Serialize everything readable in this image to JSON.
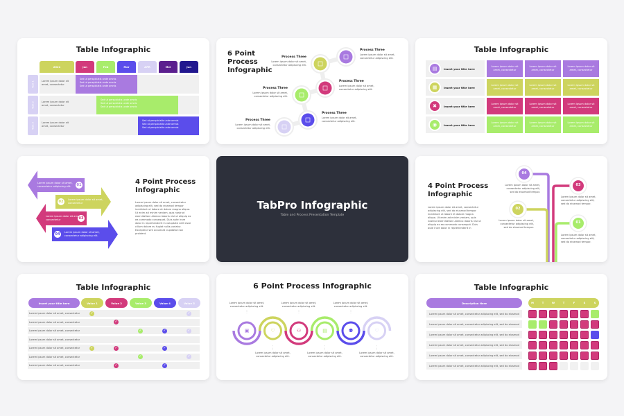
{
  "colors": {
    "purple": "#a97ae0",
    "lime": "#cdd45e",
    "magenta": "#d23a7c",
    "green": "#a8ec6b",
    "indigo": "#5b4deb",
    "lavender": "#d7d1f4",
    "darkpurple": "#5b1f8e",
    "navy": "#21178e",
    "dark": "#2d303b"
  },
  "slide1": {
    "title": "Table Infographic",
    "headers": [
      "2021",
      "Jan",
      "Feb",
      "Mar",
      "APR",
      "Mei",
      "Jun"
    ],
    "tasks": [
      {
        "label": "Task 1",
        "text": "Lorem ipsum dolor sit amet, consectetur",
        "bullets": [
          "Sed ut perspiciatis unde omnis",
          "Sed ut perspiciatis unde omnis",
          "Sed ut perspiciatis unde omnis"
        ]
      },
      {
        "label": "Task 2",
        "text": "Lorem ipsum dolor sit amet, consectetur",
        "bullets": [
          "Sed ut perspiciatis unde omnis",
          "Sed ut perspiciatis unde omnis",
          "Sed ut perspiciatis unde omnis"
        ]
      },
      {
        "label": "Task 3",
        "text": "Lorem ipsum dolor sit amet, consectetur",
        "bullets": [
          "Sed ut perspiciatis unde omnis",
          "Sed ut perspiciatis unde omnis",
          "Sed ut perspiciatis unde omnis"
        ]
      }
    ]
  },
  "slide2": {
    "title": "6 Point Process Infographic",
    "steps": [
      {
        "heading": "Process Three",
        "text": "Lorem ipsum dolor sit amet, consectetur adipiscing elit."
      },
      {
        "heading": "Process Three",
        "text": "Lorem ipsum dolor sit amet, consectetur adipiscing elit."
      },
      {
        "heading": "Process Three",
        "text": "Lorem ipsum dolor sit amet, consectetur adipiscing elit."
      },
      {
        "heading": "Process Three",
        "text": "Lorem ipsum dolor sit amet, consectetur adipiscing elit."
      },
      {
        "heading": "Process Three",
        "text": "Lorem ipsum dolor sit amet, consectetur adipiscing elit."
      },
      {
        "heading": "Process Three",
        "text": "Lorem ipsum dolor sit amet, consectetur adipiscing elit."
      }
    ]
  },
  "slide3": {
    "title": "Table Infographic",
    "rows": [
      {
        "label": "Insert your title here",
        "icon": "document-icon",
        "cells": [
          "Lorem ipsum dolor sit amet, consectetur",
          "Lorem ipsum dolor sit amet, consectetur",
          "Lorem ipsum dolor sit amet, consectetur"
        ]
      },
      {
        "label": "Insert your title here",
        "icon": "calendar-icon",
        "cells": [
          "Lorem ipsum dolor sit amet, consectetur",
          "Lorem ipsum dolor sit amet, consectetur",
          "Lorem ipsum dolor sit amet, consectetur"
        ]
      },
      {
        "label": "Insert your title here",
        "icon": "puzzle-icon",
        "cells": [
          "Lorem ipsum dolor sit amet, consectetur",
          "Lorem ipsum dolor sit amet, consectetur",
          "Lorem ipsum dolor sit amet, consectetur"
        ]
      },
      {
        "label": "Insert your title here",
        "icon": "target-icon",
        "cells": [
          "Lorem ipsum dolor sit amet, consectetur",
          "Lorem ipsum dolor sit amet, consectetur",
          "Lorem ipsum dolor sit amet, consectetur"
        ]
      }
    ]
  },
  "slide4": {
    "title": "4 Point Process Infographic",
    "paragraph": "Lorem ipsum dolor sit amet, consectetur adipiscing elit, sed do eiusmod tempor incididunt ut labore et dolore magna aliqua. Ut enim ad minim veniam, quis nostrud exercitation ullamco laboris nisi ut aliquip ex ea commodo consequat. Duis aute irure dolor in reprehenderit in voluptate velit esse cillum dolore eu fugiat nulla pariatur. Excepteur sint occaecat cupidatat non proident.",
    "arrows": [
      {
        "num": "01",
        "text": "Lorem ipsum dolor sit amet, consectetur adipiscing elit."
      },
      {
        "num": "02",
        "text": "Lorem ipsum dolor sit amet, consectetur"
      },
      {
        "num": "03",
        "text": "Lorem ipsum dolor sit amet, consectetur"
      },
      {
        "num": "04",
        "text": "Lorem ipsum dolor sit amet, consectetur adipiscing elit."
      }
    ]
  },
  "slide5": {
    "title": "TabPro Infographic",
    "subtitle": "Table and Process Presentation Template"
  },
  "slide6": {
    "title": "4 Point Process Infographic",
    "paragraph": "Lorem ipsum dolor sit amet, consectetur adipiscing elit, sed do eiusmod tempor incididunt ut labore et dolore magna aliqua. Ut enim ad minim veniam, quis nostrud exercitation ullamco laboris nisi ut aliquip ex ea commodo consequat. Duis aute irure dolor in reprehenderit in",
    "points": [
      {
        "num": "04",
        "text": "Lorem ipsum dolor sit amet, consectetur adipiscing elit, sed do eiusmod tempor."
      },
      {
        "num": "03",
        "text": "Lorem ipsum dolor sit amet, consectetur adipiscing elit, sed do eiusmod tempor."
      },
      {
        "num": "02",
        "text": "Lorem ipsum dolor sit amet, consectetur adipiscing elit, sed do eiusmod tempor."
      },
      {
        "num": "01",
        "text": "Lorem ipsum dolor sit amet, consectetur adipiscing elit, sed do eiusmod tempor."
      }
    ]
  },
  "slide7": {
    "title": "Table Infographic",
    "header": "Insert your title here",
    "values": [
      "Value 1",
      "Value 2",
      "Value 3",
      "Value 4",
      "Value 5"
    ],
    "rows": [
      {
        "text": "Lorem ipsum dolor sit amet, consectetur",
        "checks": [
          1,
          0,
          0,
          0,
          1
        ]
      },
      {
        "text": "Lorem ipsum dolor sit amet, consectetur",
        "checks": [
          0,
          1,
          0,
          0,
          0
        ]
      },
      {
        "text": "Lorem ipsum dolor sit amet, consectetur",
        "checks": [
          0,
          0,
          1,
          1,
          1
        ]
      },
      {
        "text": "Lorem ipsum dolor sit amet, consectetur",
        "checks": [
          0,
          0,
          0,
          0,
          0
        ]
      },
      {
        "text": "Lorem ipsum dolor sit amet, consectetur",
        "checks": [
          1,
          1,
          0,
          1,
          0
        ]
      },
      {
        "text": "Lorem ipsum dolor sit amet, consectetur",
        "checks": [
          0,
          0,
          1,
          0,
          1
        ]
      },
      {
        "text": "Lorem ipsum dolor sit amet, consectetur",
        "checks": [
          0,
          1,
          0,
          1,
          0
        ]
      }
    ]
  },
  "slide8": {
    "title": "6 Point Process Infographic",
    "steps": [
      {
        "icon": "briefcase-icon",
        "text": "Lorem ipsum dolor sit amet, consectetur adipiscing elit."
      },
      {
        "icon": "handshake-icon",
        "text": "Lorem ipsum dolor sit amet, consectetur adipiscing elit."
      },
      {
        "icon": "team-icon",
        "text": "Lorem ipsum dolor sit amet, consectetur adipiscing elit."
      },
      {
        "icon": "list-icon",
        "text": "Lorem ipsum dolor sit amet, consectetur adipiscing elit."
      },
      {
        "icon": "people-icon",
        "text": "Lorem ipsum dolor sit amet, consectetur adipiscing elit."
      },
      {
        "icon": "heart-hand-icon",
        "text": "Lorem ipsum dolor sit amet, consectetur adipiscing elit."
      }
    ]
  },
  "slide9": {
    "title": "Table Infographic",
    "header": "Description Here",
    "days": [
      "M",
      "T",
      "W",
      "T",
      "F",
      "S",
      "S"
    ],
    "rows": [
      {
        "text": "Lorem ipsum dolor sit amet, consectetur adipiscing elit, sed do eiusmod",
        "cells": "MMMMMMG"
      },
      {
        "text": "Lorem ipsum dolor sit amet, consectetur adipiscing elit, sed do eiusmod",
        "cells": "GGMMMMM"
      },
      {
        "text": "Lorem ipsum dolor sit amet, consectetur adipiscing elit, sed do eiusmod",
        "cells": "MMMMMMI"
      },
      {
        "text": "Lorem ipsum dolor sit amet, consectetur adipiscing elit, sed do eiusmod",
        "cells": "MMMMMMM"
      },
      {
        "text": "Lorem ipsum dolor sit amet, consectetur adipiscing elit, sed do eiusmod",
        "cells": "MMMMMMM"
      },
      {
        "text": "Lorem ipsum dolor sit amet, consectetur adipiscing elit, sed do eiusmod",
        "cells": "MMMEEEE"
      }
    ]
  }
}
